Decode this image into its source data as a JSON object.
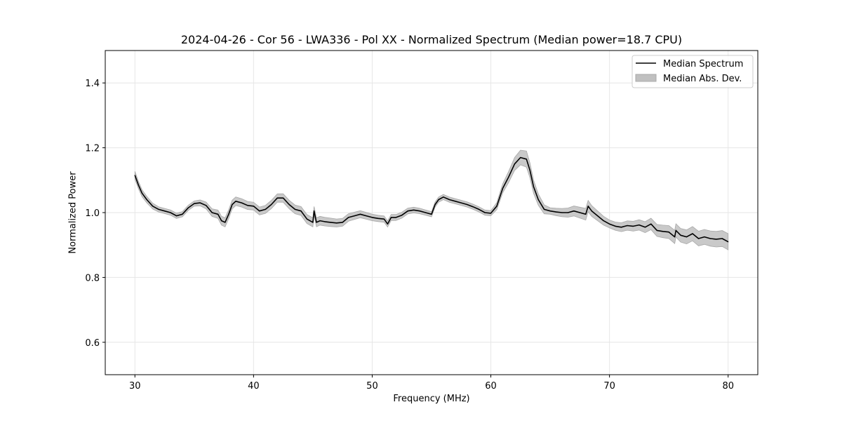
{
  "chart_data": {
    "type": "line",
    "title": "2024-04-26 - Cor 56 - LWA336 - Pol XX - Normalized Spectrum (Median power=18.7 CPU)",
    "xlabel": "Frequency (MHz)",
    "ylabel": "Normalized Power",
    "xlim": [
      27.5,
      82.5
    ],
    "ylim": [
      0.5,
      1.5
    ],
    "xticks": [
      30,
      40,
      50,
      60,
      70,
      80
    ],
    "yticks": [
      0.6,
      0.8,
      1.0,
      1.2,
      1.4
    ],
    "xtick_labels": [
      "30",
      "40",
      "50",
      "60",
      "70",
      "80"
    ],
    "ytick_labels": [
      "0.6",
      "0.8",
      "1.0",
      "1.2",
      "1.4"
    ],
    "grid": true,
    "legend_position": "top-right",
    "legend": [
      "Median Spectrum",
      "Median Abs. Dev."
    ],
    "colors": {
      "line": "#000000",
      "band": "#c0c0c0",
      "band_edge": "#a8a8a8",
      "grid": "#e6e6e6"
    },
    "series": [
      {
        "name": "Median Spectrum",
        "x": [
          30.0,
          30.3,
          30.6,
          31.0,
          31.5,
          32.0,
          32.5,
          33.0,
          33.5,
          34.0,
          34.5,
          35.0,
          35.5,
          36.0,
          36.5,
          37.0,
          37.3,
          37.6,
          37.9,
          38.2,
          38.5,
          39.0,
          39.5,
          40.0,
          40.5,
          41.0,
          41.5,
          42.0,
          42.5,
          43.0,
          43.5,
          44.0,
          44.5,
          45.0,
          45.1,
          45.3,
          45.6,
          46.0,
          46.5,
          47.0,
          47.5,
          48.0,
          48.5,
          49.0,
          49.5,
          50.0,
          50.5,
          51.0,
          51.3,
          51.6,
          52.0,
          52.5,
          53.0,
          53.5,
          54.0,
          54.5,
          55.0,
          55.3,
          55.6,
          56.0,
          56.5,
          57.0,
          57.5,
          58.0,
          58.5,
          59.0,
          59.5,
          60.0,
          60.5,
          61.0,
          61.5,
          62.0,
          62.5,
          63.0,
          63.3,
          63.6,
          64.0,
          64.5,
          65.0,
          65.5,
          66.0,
          66.5,
          67.0,
          67.5,
          68.0,
          68.2,
          68.5,
          69.0,
          69.5,
          70.0,
          70.5,
          71.0,
          71.5,
          72.0,
          72.5,
          73.0,
          73.5,
          74.0,
          74.5,
          75.0,
          75.5,
          75.6,
          76.0,
          76.5,
          77.0,
          77.5,
          78.0,
          78.5,
          79.0,
          79.5,
          80.0
        ],
        "values": [
          1.115,
          1.085,
          1.06,
          1.04,
          1.02,
          1.01,
          1.005,
          1.0,
          0.99,
          0.995,
          1.015,
          1.028,
          1.03,
          1.022,
          1.0,
          0.995,
          0.975,
          0.97,
          0.995,
          1.025,
          1.035,
          1.03,
          1.022,
          1.02,
          1.005,
          1.01,
          1.025,
          1.045,
          1.045,
          1.025,
          1.01,
          1.005,
          0.98,
          0.97,
          1.005,
          0.97,
          0.975,
          0.972,
          0.97,
          0.968,
          0.97,
          0.985,
          0.99,
          0.995,
          0.99,
          0.985,
          0.982,
          0.98,
          0.965,
          0.985,
          0.985,
          0.992,
          1.005,
          1.008,
          1.005,
          1.0,
          0.995,
          1.025,
          1.04,
          1.048,
          1.04,
          1.035,
          1.03,
          1.025,
          1.018,
          1.01,
          1.0,
          0.998,
          1.02,
          1.075,
          1.11,
          1.15,
          1.17,
          1.165,
          1.13,
          1.08,
          1.04,
          1.01,
          1.005,
          1.002,
          1.0,
          1.0,
          1.005,
          1.0,
          0.995,
          1.02,
          1.005,
          0.99,
          0.975,
          0.965,
          0.958,
          0.955,
          0.96,
          0.958,
          0.962,
          0.955,
          0.965,
          0.945,
          0.942,
          0.94,
          0.925,
          0.945,
          0.93,
          0.925,
          0.935,
          0.92,
          0.925,
          0.92,
          0.918,
          0.92,
          0.91
        ]
      },
      {
        "name": "Median Abs. Dev.",
        "x": [
          30.0,
          32.0,
          35.0,
          37.5,
          40.0,
          45.0,
          50.0,
          55.0,
          60.0,
          62.0,
          63.0,
          65.0,
          68.0,
          70.0,
          75.0,
          80.0
        ],
        "values": [
          0.012,
          0.008,
          0.008,
          0.014,
          0.012,
          0.014,
          0.01,
          0.008,
          0.008,
          0.02,
          0.025,
          0.01,
          0.018,
          0.012,
          0.02,
          0.025
        ]
      }
    ]
  }
}
